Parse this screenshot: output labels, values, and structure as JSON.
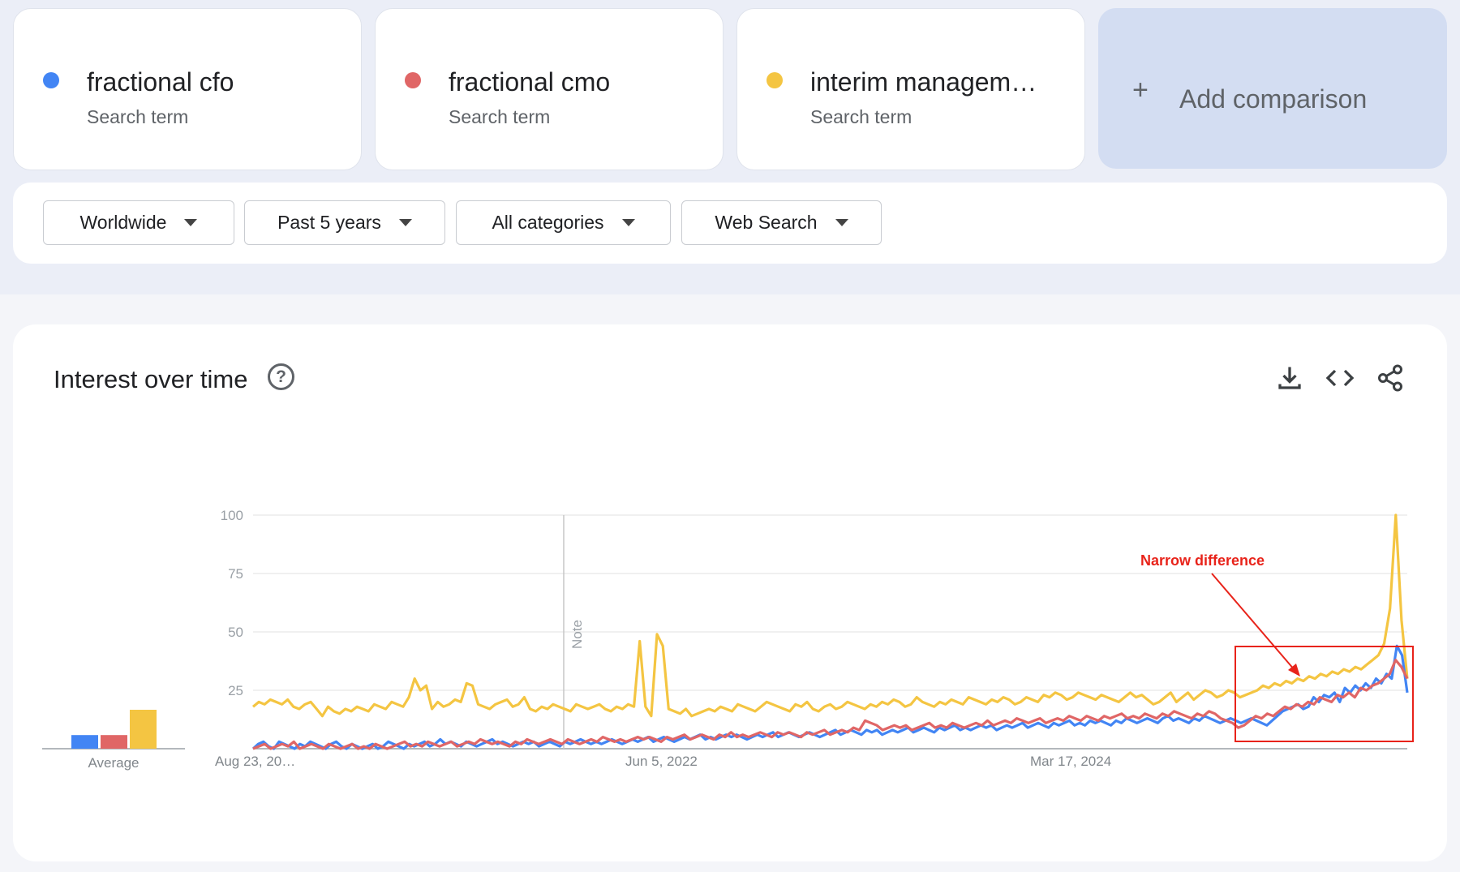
{
  "terms": [
    {
      "name": "fractional cfo",
      "subtitle": "Search term",
      "color": "#4285f4"
    },
    {
      "name": "fractional cmo",
      "subtitle": "Search term",
      "color": "#e06666"
    },
    {
      "name": "interim managem…",
      "subtitle": "Search term",
      "color": "#f4c542"
    }
  ],
  "add_comparison": {
    "label": "Add comparison"
  },
  "filters": [
    {
      "label": "Worldwide"
    },
    {
      "label": "Past 5 years"
    },
    {
      "label": "All categories"
    },
    {
      "label": "Web Search"
    }
  ],
  "panel": {
    "title": "Interest over time",
    "help_icon": "help-circle-icon",
    "icons": [
      "download-icon",
      "embed-code-icon",
      "share-icon"
    ]
  },
  "chart_data": {
    "type": "line",
    "title": "",
    "ylim": [
      0,
      100
    ],
    "y_ticks": [
      "100",
      "75",
      "50",
      "25"
    ],
    "x_tick_labels": [
      "Aug 23, 20…",
      "Jun 5, 2022",
      "Mar 17, 2024"
    ],
    "note_label": "Note",
    "average_label": "Average",
    "averages": [
      7,
      7,
      20
    ],
    "annotation": {
      "text": "Narrow difference",
      "color": "#e8231a"
    },
    "series": [
      {
        "color": "#4285f4",
        "values": [
          0,
          2,
          3,
          1,
          0,
          3,
          2,
          1,
          0,
          2,
          1,
          3,
          2,
          1,
          0,
          2,
          3,
          1,
          0,
          2,
          1,
          0,
          1,
          2,
          0,
          1,
          3,
          2,
          1,
          0,
          2,
          1,
          2,
          3,
          1,
          2,
          4,
          2,
          3,
          2,
          1,
          3,
          2,
          1,
          2,
          3,
          4,
          2,
          3,
          2,
          1,
          2,
          3,
          2,
          3,
          1,
          2,
          3,
          2,
          1,
          3,
          2,
          3,
          4,
          3,
          2,
          3,
          2,
          3,
          4,
          3,
          2,
          3,
          4,
          3,
          4,
          5,
          3,
          4,
          5,
          4,
          3,
          4,
          5,
          4,
          5,
          6,
          4,
          5,
          4,
          5,
          6,
          5,
          6,
          5,
          4,
          5,
          6,
          5,
          6,
          7,
          5,
          6,
          7,
          6,
          5,
          6,
          7,
          6,
          5,
          6,
          7,
          8,
          6,
          7,
          8,
          7,
          6,
          8,
          7,
          8,
          6,
          7,
          8,
          7,
          8,
          9,
          7,
          8,
          9,
          8,
          7,
          9,
          8,
          9,
          10,
          8,
          9,
          8,
          9,
          10,
          9,
          10,
          8,
          9,
          10,
          9,
          10,
          11,
          9,
          10,
          11,
          10,
          9,
          11,
          10,
          11,
          12,
          10,
          11,
          10,
          12,
          11,
          12,
          11,
          10,
          12,
          11,
          13,
          12,
          11,
          12,
          13,
          12,
          11,
          13,
          14,
          12,
          13,
          12,
          11,
          13,
          12,
          14,
          13,
          12,
          11,
          12,
          13,
          12,
          11,
          12,
          13,
          12,
          11,
          10,
          12,
          14,
          16,
          17,
          18,
          19,
          17,
          18,
          22,
          20,
          23,
          22,
          24,
          20,
          26,
          24,
          27,
          25,
          28,
          26,
          30,
          28,
          32,
          30,
          44,
          40,
          24
        ]
      },
      {
        "color": "#e06666",
        "values": [
          0,
          1,
          2,
          0,
          1,
          2,
          1,
          3,
          0,
          1,
          2,
          1,
          0,
          2,
          1,
          0,
          1,
          2,
          0,
          1,
          0,
          2,
          1,
          0,
          1,
          2,
          3,
          1,
          2,
          1,
          3,
          2,
          1,
          2,
          3,
          1,
          2,
          3,
          2,
          4,
          3,
          2,
          3,
          2,
          1,
          3,
          2,
          4,
          3,
          2,
          3,
          4,
          3,
          2,
          4,
          3,
          2,
          3,
          4,
          3,
          5,
          4,
          3,
          4,
          3,
          4,
          5,
          4,
          5,
          4,
          3,
          5,
          4,
          5,
          6,
          4,
          5,
          6,
          5,
          4,
          6,
          5,
          7,
          5,
          6,
          5,
          6,
          7,
          6,
          5,
          7,
          6,
          7,
          6,
          5,
          7,
          6,
          7,
          8,
          6,
          7,
          8,
          7,
          9,
          8,
          12,
          11,
          10,
          8,
          9,
          10,
          9,
          10,
          8,
          9,
          10,
          11,
          9,
          10,
          9,
          11,
          10,
          9,
          10,
          11,
          10,
          12,
          10,
          11,
          12,
          11,
          13,
          12,
          11,
          12,
          13,
          11,
          12,
          13,
          12,
          14,
          13,
          12,
          14,
          13,
          12,
          14,
          13,
          14,
          15,
          13,
          14,
          13,
          15,
          14,
          13,
          15,
          14,
          16,
          15,
          14,
          13,
          15,
          14,
          16,
          15,
          13,
          12,
          11,
          9,
          10,
          12,
          14,
          13,
          15,
          14,
          16,
          18,
          17,
          19,
          18,
          20,
          19,
          22,
          21,
          20,
          23,
          22,
          24,
          22,
          26,
          25,
          27,
          28,
          30,
          32,
          38,
          35,
          30
        ]
      },
      {
        "color": "#f4c542",
        "values": [
          18,
          20,
          19,
          21,
          20,
          19,
          21,
          18,
          17,
          19,
          20,
          17,
          14,
          18,
          16,
          15,
          17,
          16,
          18,
          17,
          16,
          19,
          18,
          17,
          20,
          19,
          18,
          22,
          30,
          25,
          27,
          17,
          20,
          18,
          19,
          21,
          20,
          28,
          27,
          19,
          18,
          17,
          19,
          20,
          21,
          18,
          19,
          22,
          17,
          16,
          18,
          17,
          19,
          18,
          17,
          16,
          19,
          18,
          17,
          18,
          19,
          17,
          16,
          18,
          17,
          19,
          18,
          46,
          18,
          14,
          49,
          44,
          17,
          16,
          15,
          17,
          14,
          15,
          16,
          17,
          16,
          18,
          17,
          16,
          19,
          18,
          17,
          16,
          18,
          20,
          19,
          18,
          17,
          16,
          19,
          18,
          20,
          17,
          16,
          18,
          19,
          17,
          18,
          20,
          19,
          18,
          17,
          19,
          18,
          20,
          19,
          21,
          20,
          18,
          19,
          22,
          20,
          19,
          18,
          20,
          19,
          21,
          20,
          19,
          22,
          21,
          20,
          19,
          21,
          20,
          22,
          21,
          19,
          20,
          22,
          21,
          20,
          23,
          22,
          24,
          23,
          21,
          22,
          24,
          23,
          22,
          21,
          23,
          22,
          21,
          20,
          22,
          24,
          22,
          23,
          21,
          19,
          20,
          22,
          24,
          20,
          22,
          24,
          21,
          23,
          25,
          24,
          22,
          23,
          25,
          24,
          22,
          23,
          24,
          25,
          27,
          26,
          28,
          27,
          29,
          28,
          30,
          29,
          31,
          30,
          32,
          31,
          33,
          32,
          34,
          33,
          35,
          34,
          36,
          38,
          40,
          45,
          60,
          100,
          55,
          30
        ]
      }
    ]
  }
}
